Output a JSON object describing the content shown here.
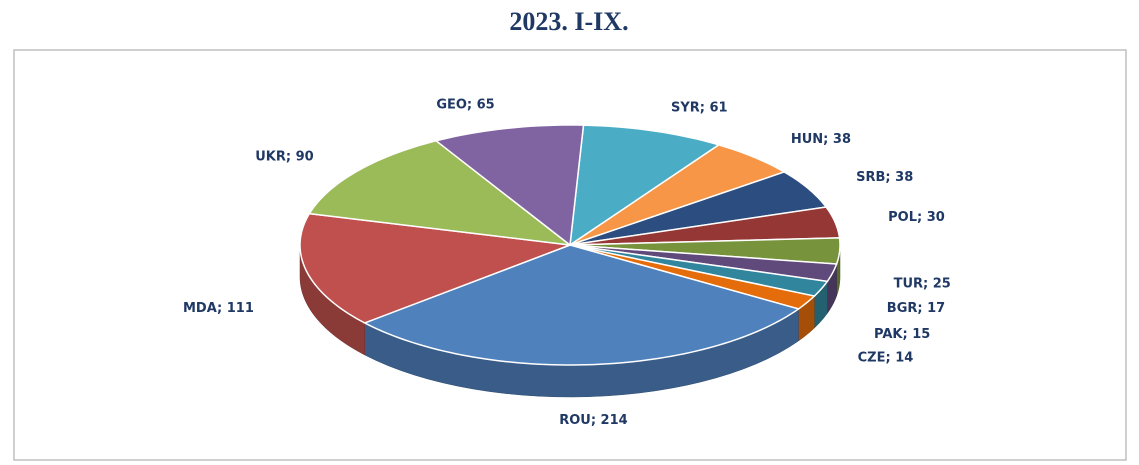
{
  "chart_data": {
    "type": "pie3d",
    "title": "2023. I-IX.",
    "values": [
      61,
      38,
      38,
      30,
      25,
      17,
      15,
      14,
      214,
      111,
      90,
      65
    ],
    "value_labels": [
      "SYR; 61",
      "HUN; 38",
      "SRB; 38",
      "POL; 30",
      "TUR; 25",
      "BGR; 17",
      "PAK; 15",
      "CZE; 14",
      "ROU; 214",
      "MDA; 111",
      "UKR; 90",
      "GEO; 65"
    ],
    "colors": [
      "#4bacc6",
      "#f79646",
      "#2c4d7f",
      "#953735",
      "#77933c",
      "#604a7b",
      "#31859c",
      "#e46c0a",
      "#4f81bd",
      "#c0504d",
      "#9bbb59",
      "#8064a2"
    ]
  }
}
